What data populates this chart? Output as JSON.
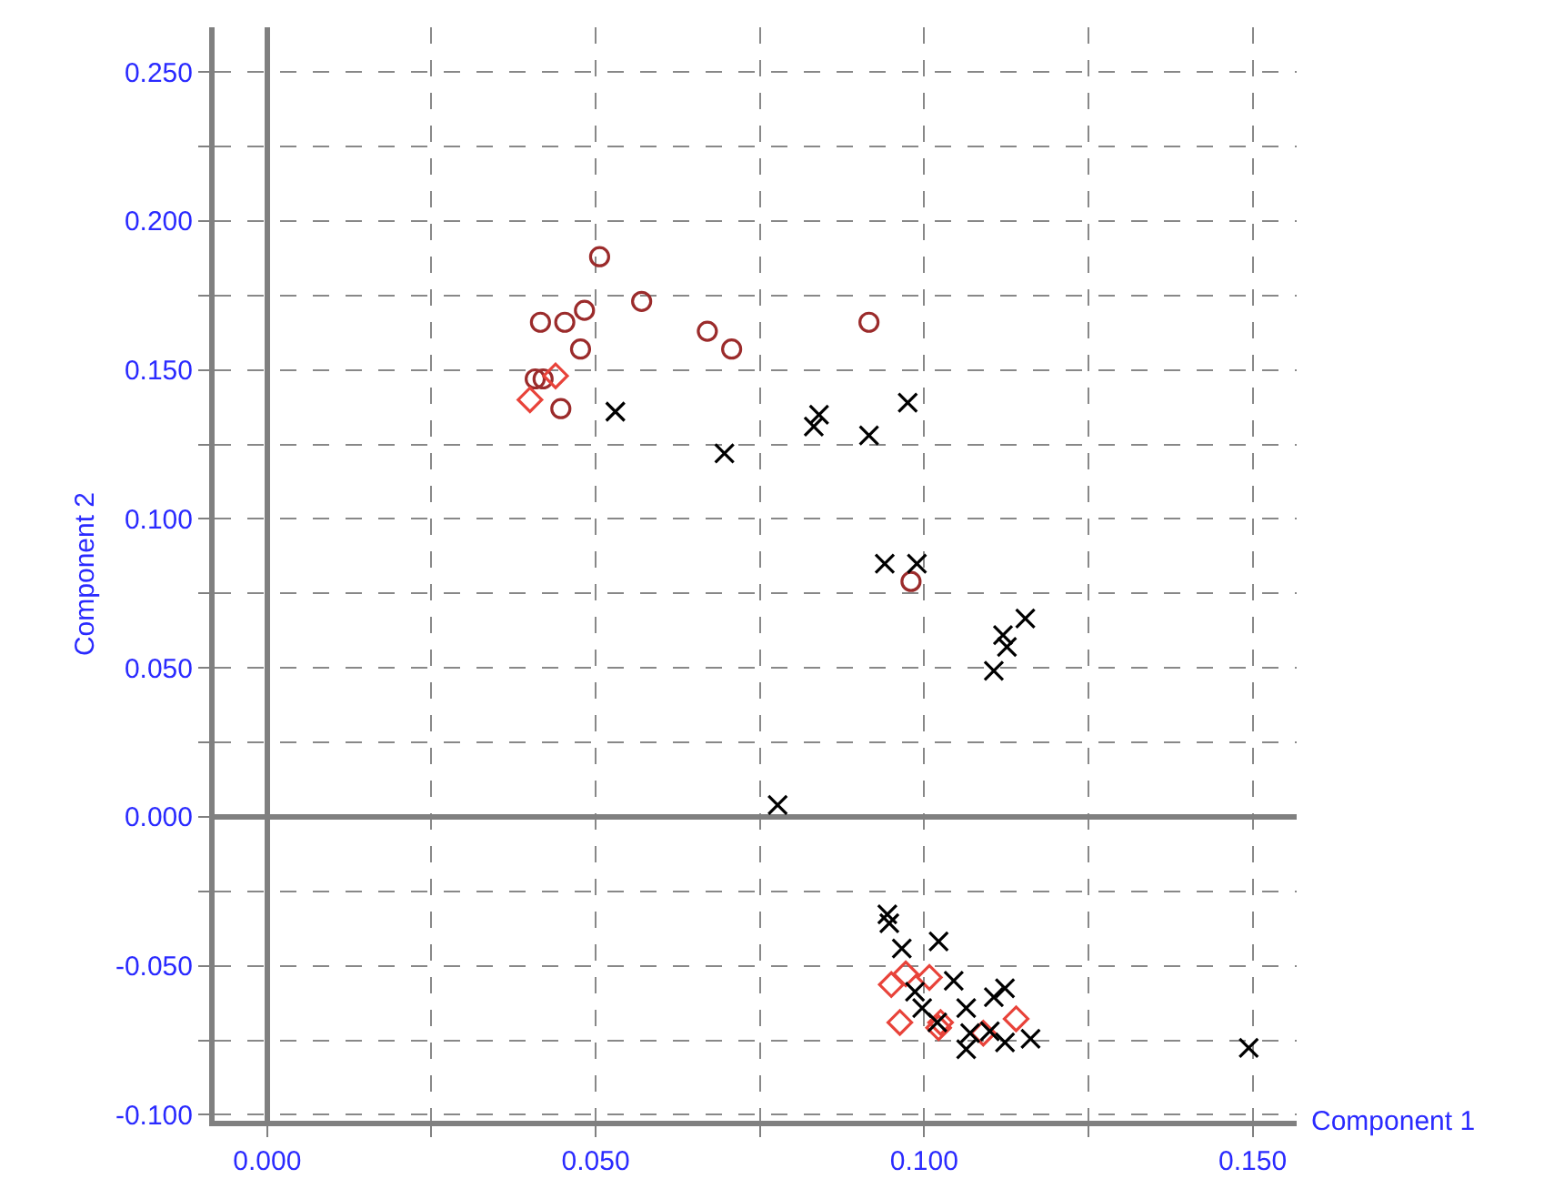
{
  "chart_data": {
    "type": "scatter",
    "xlabel": "Component 1",
    "ylabel": "Component 2",
    "xlim": [
      -0.008,
      0.1567
    ],
    "ylim": [
      -0.102,
      0.265
    ],
    "xticks": [
      {
        "value": 0.0,
        "label": "0.000"
      },
      {
        "value": 0.025,
        "label": null
      },
      {
        "value": 0.05,
        "label": "0.050"
      },
      {
        "value": 0.075,
        "label": null
      },
      {
        "value": 0.1,
        "label": "0.100"
      },
      {
        "value": 0.125,
        "label": null
      },
      {
        "value": 0.15,
        "label": "0.150"
      }
    ],
    "yticks": [
      {
        "value": -0.1,
        "label": "-0.100"
      },
      {
        "value": -0.075,
        "label": null
      },
      {
        "value": -0.05,
        "label": "-0.050"
      },
      {
        "value": -0.025,
        "label": null
      },
      {
        "value": 0.0,
        "label": "0.000"
      },
      {
        "value": 0.025,
        "label": null
      },
      {
        "value": 0.05,
        "label": "0.050"
      },
      {
        "value": 0.075,
        "label": null
      },
      {
        "value": 0.1,
        "label": "0.100"
      },
      {
        "value": 0.125,
        "label": null
      },
      {
        "value": 0.15,
        "label": "0.150"
      },
      {
        "value": 0.175,
        "label": null
      },
      {
        "value": 0.2,
        "label": "0.200"
      },
      {
        "value": 0.225,
        "label": null
      },
      {
        "value": 0.25,
        "label": "0.250"
      }
    ],
    "grid": true,
    "series": [
      {
        "color": "#9b2b2b",
        "marker": "circle",
        "x": [
          0.0506,
          0.0416,
          0.0453,
          0.0483,
          0.057,
          0.0477,
          0.067,
          0.0707,
          0.0408,
          0.042,
          0.0447,
          0.0916,
          0.098
        ],
        "values": [
          0.188,
          0.166,
          0.166,
          0.17,
          0.173,
          0.157,
          0.163,
          0.157,
          0.147,
          0.147,
          0.137,
          0.166,
          0.079
        ]
      },
      {
        "color": "#e8433a",
        "marker": "diamond",
        "x": [
          0.04,
          0.0439,
          0.095,
          0.0972,
          0.0963,
          0.1008,
          0.1022,
          0.1025,
          0.109,
          0.114
        ],
        "values": [
          0.14,
          0.148,
          -0.0563,
          -0.0527,
          -0.069,
          -0.0539,
          -0.0708,
          -0.069,
          -0.0726,
          -0.0678
        ]
      },
      {
        "color": "#000000",
        "marker": "cross",
        "x": [
          0.053,
          0.0696,
          0.0832,
          0.084,
          0.0916,
          0.0975,
          0.094,
          0.0989,
          0.1154,
          0.112,
          0.1126,
          0.1106,
          0.0777,
          0.0944,
          0.0947,
          0.0966,
          0.1022,
          0.1045,
          0.0986,
          0.0997,
          0.1064,
          0.1106,
          0.1123,
          0.107,
          0.1064,
          0.11,
          0.1123,
          0.1162,
          0.1494,
          0.102
        ],
        "values": [
          0.136,
          0.122,
          0.131,
          0.135,
          0.128,
          0.139,
          0.085,
          0.085,
          0.0666,
          0.061,
          0.057,
          0.049,
          0.004,
          -0.0327,
          -0.0357,
          -0.0442,
          -0.0418,
          -0.055,
          -0.0587,
          -0.0642,
          -0.0642,
          -0.0605,
          -0.0575,
          -0.0726,
          -0.078,
          -0.072,
          -0.0757,
          -0.0745,
          -0.0775,
          -0.069
        ]
      }
    ]
  }
}
